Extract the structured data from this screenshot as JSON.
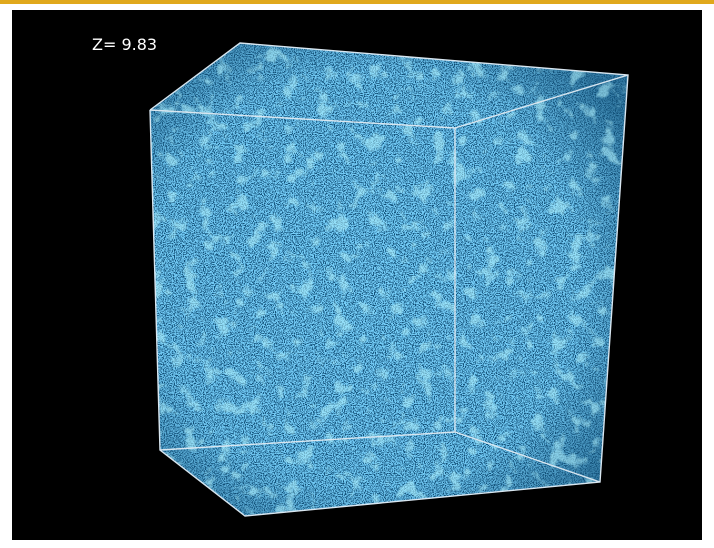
{
  "overlay": {
    "label": "Z= 9.83"
  }
}
